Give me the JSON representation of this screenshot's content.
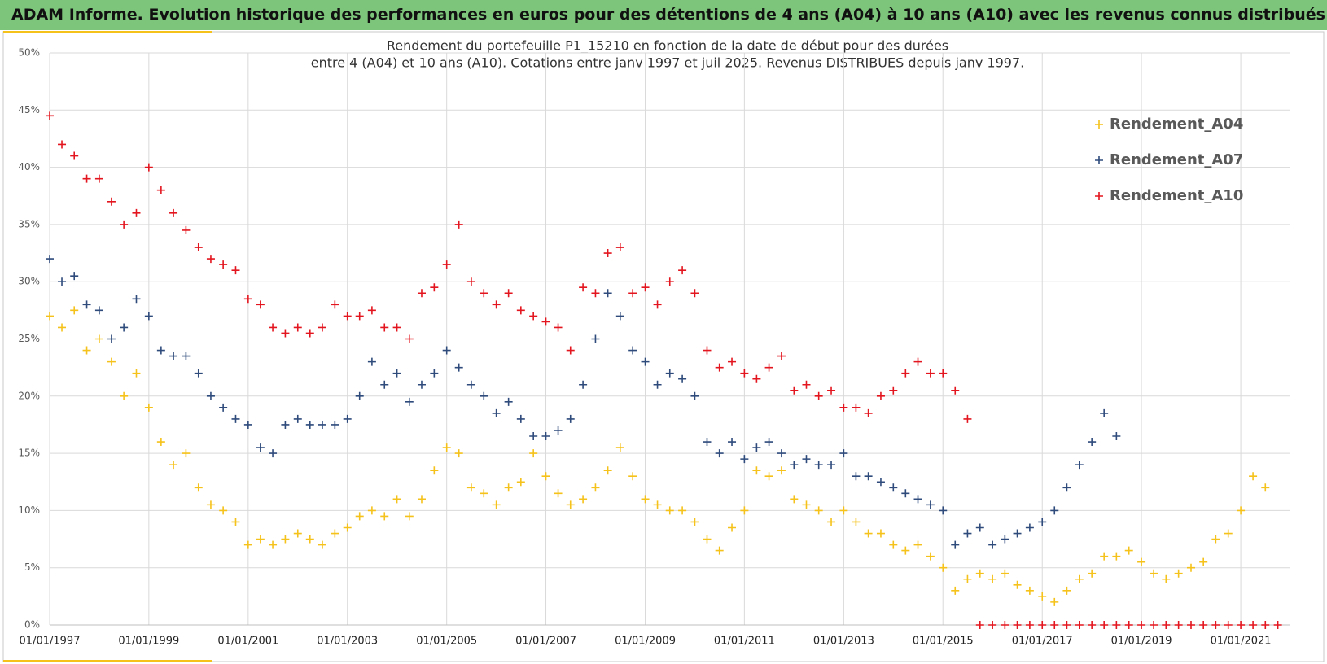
{
  "header": {
    "title": "ADAM Informe. Evolution historique des performances en euros pour des détentions de 4 ans (A04) à 10 ans (A10) avec les revenus connus distribués"
  },
  "chart_data": {
    "type": "scatter",
    "title": "Rendement du portefeuille P1_15210 en fonction de la date de début pour des durées",
    "subtitle": "entre 4 (A04) et 10 ans (A10). Cotations entre janv 1997 et juil 2025. Revenus DISTRIBUES depuis janv 1997.",
    "legend": "upper right",
    "grid": true,
    "x": [
      "1997-01-01",
      "1997-04-01",
      "1997-07-01",
      "1997-10-01",
      "1998-01-01",
      "1998-04-01",
      "1998-07-01",
      "1998-10-01",
      "1999-01-01",
      "1999-04-01",
      "1999-07-01",
      "1999-10-01",
      "2000-01-01",
      "2000-04-01",
      "2000-07-01",
      "2000-10-01",
      "2001-01-01",
      "2001-04-01",
      "2001-07-01",
      "2001-10-01",
      "2002-01-01",
      "2002-04-01",
      "2002-07-01",
      "2002-10-01",
      "2003-01-01",
      "2003-04-01",
      "2003-07-01",
      "2003-10-01",
      "2004-01-01",
      "2004-04-01",
      "2004-07-01",
      "2004-10-01",
      "2005-01-01",
      "2005-04-01",
      "2005-07-01",
      "2005-10-01",
      "2006-01-01",
      "2006-04-01",
      "2006-07-01",
      "2006-10-01",
      "2007-01-01",
      "2007-04-01",
      "2007-07-01",
      "2007-10-01",
      "2008-01-01",
      "2008-04-01",
      "2008-07-01",
      "2008-10-01",
      "2009-01-01",
      "2009-04-01",
      "2009-07-01",
      "2009-10-01",
      "2010-01-01",
      "2010-04-01",
      "2010-07-01",
      "2010-10-01",
      "2011-01-01",
      "2011-04-01",
      "2011-07-01",
      "2011-10-01",
      "2012-01-01",
      "2012-04-01",
      "2012-07-01",
      "2012-10-01",
      "2013-01-01",
      "2013-04-01",
      "2013-07-01",
      "2013-10-01",
      "2014-01-01",
      "2014-04-01",
      "2014-07-01",
      "2014-10-01",
      "2015-01-01",
      "2015-04-01",
      "2015-07-01",
      "2015-10-01",
      "2016-01-01",
      "2016-04-01",
      "2016-07-01",
      "2016-10-01",
      "2017-01-01",
      "2017-04-01",
      "2017-07-01",
      "2017-10-01",
      "2018-01-01",
      "2018-04-01",
      "2018-07-01",
      "2018-10-01",
      "2019-01-01",
      "2019-04-01",
      "2019-07-01",
      "2019-10-01",
      "2020-01-01",
      "2020-04-01",
      "2020-07-01",
      "2020-10-01",
      "2021-01-01",
      "2021-04-01",
      "2021-07-01",
      "2021-10-01"
    ],
    "series": [
      {
        "name": "Rendement_A04",
        "color": "#f5c21b",
        "values": [
          27,
          26,
          27.5,
          24,
          25,
          23,
          20,
          22,
          19,
          16,
          14,
          15,
          12,
          10.5,
          10,
          9,
          7,
          7.5,
          7,
          7.5,
          8,
          7.5,
          7,
          8,
          8.5,
          9.5,
          10,
          9.5,
          11,
          9.5,
          11,
          13.5,
          15.5,
          15,
          12,
          11.5,
          10.5,
          12,
          12.5,
          15,
          13,
          11.5,
          10.5,
          11,
          12,
          13.5,
          15.5,
          13,
          11,
          10.5,
          10,
          10,
          9,
          7.5,
          6.5,
          8.5,
          10,
          13.5,
          13,
          13.5,
          11,
          10.5,
          10,
          9,
          10,
          9,
          8,
          8,
          7,
          6.5,
          7,
          6,
          5,
          3,
          4,
          4.5,
          4,
          4.5,
          3.5,
          3,
          2.5,
          2,
          3,
          4,
          4.5,
          6,
          6,
          6.5,
          5.5,
          4.5,
          4,
          4.5,
          5,
          5.5,
          7.5,
          8,
          10,
          13,
          12,
          null
        ]
      },
      {
        "name": "Rendement_A07",
        "color": "#2f4b7c",
        "values": [
          32,
          30,
          30.5,
          28,
          27.5,
          25,
          26,
          28.5,
          27,
          24,
          23.5,
          23.5,
          22,
          20,
          19,
          18,
          17.5,
          15.5,
          15,
          17.5,
          18,
          17.5,
          17.5,
          17.5,
          18,
          20,
          23,
          21,
          22,
          19.5,
          21,
          22,
          24,
          22.5,
          21,
          20,
          18.5,
          19.5,
          18,
          16.5,
          16.5,
          17,
          18,
          21,
          25,
          29,
          27,
          24,
          23,
          21,
          22,
          21.5,
          20,
          16,
          15,
          16,
          14.5,
          15.5,
          16,
          15,
          14,
          14.5,
          14,
          14,
          15,
          13,
          13,
          12.5,
          12,
          11.5,
          11,
          10.5,
          10,
          7,
          8,
          8.5,
          7,
          7.5,
          8,
          8.5,
          9,
          10,
          12,
          14,
          16,
          18.5,
          16.5,
          null,
          null,
          null,
          null,
          null,
          null,
          null,
          null,
          null,
          null,
          null,
          null,
          null
        ]
      },
      {
        "name": "Rendement_A10",
        "color": "#e3161f",
        "values": [
          44.5,
          42,
          41,
          39,
          39,
          37,
          35,
          36,
          40,
          38,
          36,
          34.5,
          33,
          32,
          31.5,
          31,
          28.5,
          28,
          26,
          25.5,
          26,
          25.5,
          26,
          28,
          27,
          27,
          27.5,
          26,
          26,
          25,
          29,
          29.5,
          31.5,
          35,
          30,
          29,
          28,
          29,
          27.5,
          27,
          26.5,
          26,
          24,
          29.5,
          29,
          32.5,
          33,
          29,
          29.5,
          28,
          30,
          31,
          29,
          24,
          22.5,
          23,
          22,
          21.5,
          22.5,
          23.5,
          20.5,
          21,
          20,
          20.5,
          19,
          19,
          18.5,
          20,
          20.5,
          22,
          23,
          22,
          22,
          20.5,
          18,
          0,
          0,
          0,
          0,
          0,
          0,
          0,
          0,
          0,
          0,
          0,
          0,
          0,
          0,
          0,
          0,
          0,
          0,
          0,
          0,
          0,
          0,
          0,
          0,
          0
        ]
      }
    ],
    "xlim": [
      "1997-01-01",
      "2022-01-01"
    ],
    "xticks": [
      {
        "value": "1997-01-01",
        "label": "01/01/1997"
      },
      {
        "value": "1999-01-01",
        "label": "01/01/1999"
      },
      {
        "value": "2001-01-01",
        "label": "01/01/2001"
      },
      {
        "value": "2003-01-01",
        "label": "01/01/2003"
      },
      {
        "value": "2005-01-01",
        "label": "01/01/2005"
      },
      {
        "value": "2007-01-01",
        "label": "01/01/2007"
      },
      {
        "value": "2009-01-01",
        "label": "01/01/2009"
      },
      {
        "value": "2011-01-01",
        "label": "01/01/2011"
      },
      {
        "value": "2013-01-01",
        "label": "01/01/2013"
      },
      {
        "value": "2015-01-01",
        "label": "01/01/2015"
      },
      {
        "value": "2017-01-01",
        "label": "01/01/2017"
      },
      {
        "value": "2019-01-01",
        "label": "01/01/2019"
      },
      {
        "value": "2021-01-01",
        "label": "01/01/2021"
      }
    ],
    "ylim": [
      0,
      50
    ],
    "yticks": [
      {
        "value": 0,
        "label": "0%"
      },
      {
        "value": 5,
        "label": "5%"
      },
      {
        "value": 10,
        "label": "10%"
      },
      {
        "value": 15,
        "label": "15%"
      },
      {
        "value": 20,
        "label": "20%"
      },
      {
        "value": 25,
        "label": "25%"
      },
      {
        "value": 30,
        "label": "30%"
      },
      {
        "value": 35,
        "label": "35%"
      },
      {
        "value": 40,
        "label": "40%"
      },
      {
        "value": 45,
        "label": "45%"
      },
      {
        "value": 50,
        "label": "50%"
      }
    ]
  }
}
